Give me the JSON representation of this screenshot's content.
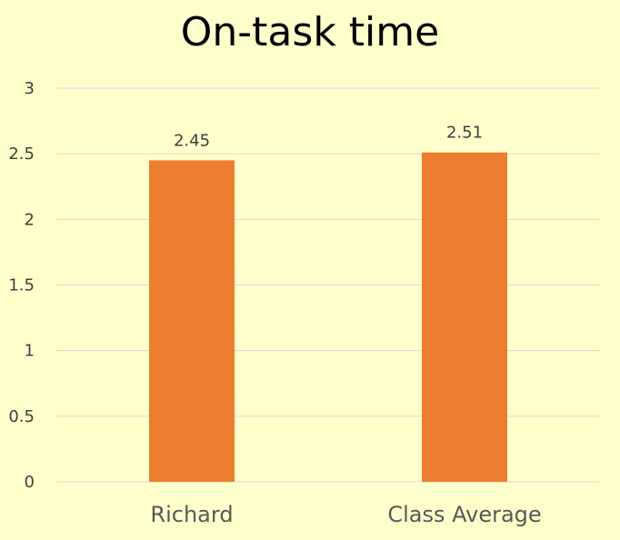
{
  "chart_data": {
    "type": "bar",
    "title": "On-task time",
    "categories": [
      "Richard",
      "Class Average"
    ],
    "values": [
      2.45,
      2.51
    ],
    "data_labels": [
      "2.45",
      "2.51"
    ],
    "y_ticks": [
      "0",
      "0.5",
      "1",
      "1.5",
      "2",
      "2.5",
      "3"
    ],
    "ylim": [
      0,
      3
    ],
    "grid": true,
    "legend": "none",
    "bar_color": "#ED7D31",
    "grid_color": "#D9D9D9",
    "background": "#FFFFCC"
  }
}
